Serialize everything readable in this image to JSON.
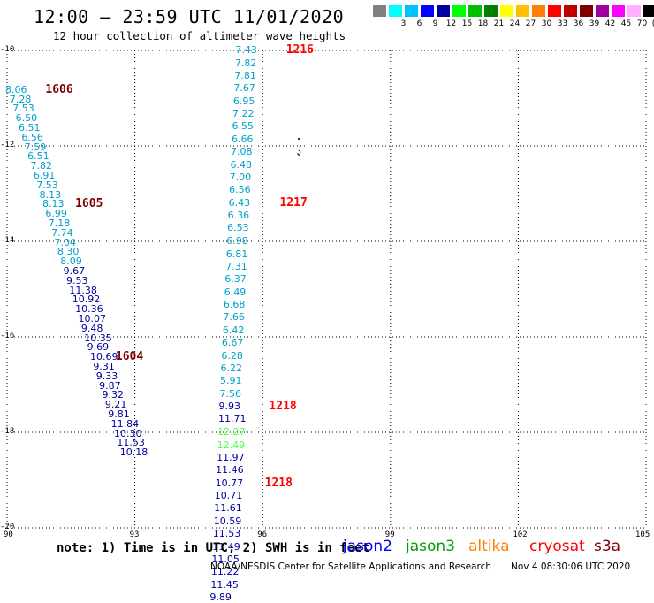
{
  "header": {
    "title": "12:00 – 23:59 UTC 11/01/2020",
    "subtitle": "12 hour collection of altimeter wave heights"
  },
  "legend": {
    "swatches": [
      {
        "color": "#808080",
        "label": ""
      },
      {
        "color": "#00ffff",
        "label": "3"
      },
      {
        "color": "#00c0ff",
        "label": "6"
      },
      {
        "color": "#0000ff",
        "label": "9"
      },
      {
        "color": "#0000a0",
        "label": "12"
      },
      {
        "color": "#00ff00",
        "label": "15"
      },
      {
        "color": "#00c000",
        "label": "18"
      },
      {
        "color": "#008000",
        "label": "21"
      },
      {
        "color": "#ffff00",
        "label": "24"
      },
      {
        "color": "#ffc000",
        "label": "27"
      },
      {
        "color": "#ff8000",
        "label": "30"
      },
      {
        "color": "#ff0000",
        "label": "33"
      },
      {
        "color": "#c00000",
        "label": "36"
      },
      {
        "color": "#800000",
        "label": "39"
      },
      {
        "color": "#a000a0",
        "label": "42"
      },
      {
        "color": "#ff00ff",
        "label": "45"
      },
      {
        "color": "#ffb0ff",
        "label": "70"
      },
      {
        "color": "#000000",
        "label": "(ft)"
      }
    ]
  },
  "axes": {
    "x_ticks": [
      "90",
      "93",
      "96",
      "99",
      "102",
      "105"
    ],
    "y_ticks": [
      "-10",
      "-12",
      "-14",
      "-16",
      "-18",
      "-20"
    ]
  },
  "tracks": [
    {
      "color_cyan": "#00a0c8",
      "color_blue": "#0000a0",
      "points": [
        {
          "lon": 90.25,
          "lat": -10.83,
          "v": "8.06",
          "c": "cyan"
        },
        {
          "lon": 90.35,
          "lat": -11.03,
          "v": "7.28",
          "c": "cyan"
        },
        {
          "lon": 90.42,
          "lat": -11.23,
          "v": "7.53",
          "c": "cyan"
        },
        {
          "lon": 90.49,
          "lat": -11.43,
          "v": "6.50",
          "c": "cyan"
        },
        {
          "lon": 90.56,
          "lat": -11.63,
          "v": "6.51",
          "c": "cyan"
        },
        {
          "lon": 90.63,
          "lat": -11.83,
          "v": "6.56",
          "c": "cyan"
        },
        {
          "lon": 90.7,
          "lat": -12.03,
          "v": "7.59",
          "c": "cyan"
        },
        {
          "lon": 90.77,
          "lat": -12.23,
          "v": "6.51",
          "c": "cyan"
        },
        {
          "lon": 90.84,
          "lat": -12.43,
          "v": "7.82",
          "c": "cyan"
        },
        {
          "lon": 90.91,
          "lat": -12.63,
          "v": "6.91",
          "c": "cyan"
        },
        {
          "lon": 90.98,
          "lat": -12.83,
          "v": "7.53",
          "c": "cyan"
        },
        {
          "lon": 91.05,
          "lat": -13.03,
          "v": "8.13",
          "c": "cyan"
        },
        {
          "lon": 91.12,
          "lat": -13.23,
          "v": "8.13",
          "c": "cyan"
        },
        {
          "lon": 91.19,
          "lat": -13.43,
          "v": "6.99",
          "c": "cyan"
        },
        {
          "lon": 91.26,
          "lat": -13.63,
          "v": "7.18",
          "c": "cyan"
        },
        {
          "lon": 91.33,
          "lat": -13.83,
          "v": "7.74",
          "c": "cyan"
        },
        {
          "lon": 91.4,
          "lat": -14.03,
          "v": "7.04",
          "c": "cyan"
        },
        {
          "lon": 91.47,
          "lat": -14.23,
          "v": "8.30",
          "c": "cyan"
        },
        {
          "lon": 91.54,
          "lat": -14.43,
          "v": "8.09",
          "c": "cyan"
        },
        {
          "lon": 91.61,
          "lat": -14.63,
          "v": "9.67",
          "c": "blue"
        },
        {
          "lon": 91.68,
          "lat": -14.83,
          "v": "9.53",
          "c": "blue"
        },
        {
          "lon": 91.75,
          "lat": -15.03,
          "v": "11.38",
          "c": "blue"
        },
        {
          "lon": 91.82,
          "lat": -15.23,
          "v": "10.92",
          "c": "blue"
        },
        {
          "lon": 91.89,
          "lat": -15.43,
          "v": "10.36",
          "c": "blue"
        },
        {
          "lon": 91.96,
          "lat": -15.63,
          "v": "10.07",
          "c": "blue"
        },
        {
          "lon": 92.03,
          "lat": -15.83,
          "v": "9.48",
          "c": "blue"
        },
        {
          "lon": 92.1,
          "lat": -16.03,
          "v": "10.35",
          "c": "blue"
        },
        {
          "lon": 92.17,
          "lat": -16.23,
          "v": "9.69",
          "c": "blue"
        },
        {
          "lon": 92.24,
          "lat": -16.43,
          "v": "10.69",
          "c": "blue"
        },
        {
          "lon": 92.31,
          "lat": -16.63,
          "v": "9.31",
          "c": "blue"
        },
        {
          "lon": 92.38,
          "lat": -16.83,
          "v": "9.33",
          "c": "blue"
        },
        {
          "lon": 92.45,
          "lat": -17.03,
          "v": "9.87",
          "c": "blue"
        },
        {
          "lon": 92.52,
          "lat": -17.23,
          "v": "9.32",
          "c": "blue"
        },
        {
          "lon": 92.59,
          "lat": -17.43,
          "v": "9.21",
          "c": "blue"
        },
        {
          "lon": 92.66,
          "lat": -17.63,
          "v": "9.81",
          "c": "blue"
        },
        {
          "lon": 92.73,
          "lat": -17.83,
          "v": "11.84",
          "c": "blue"
        },
        {
          "lon": 92.8,
          "lat": -18.03,
          "v": "10.30",
          "c": "blue"
        },
        {
          "lon": 92.87,
          "lat": -18.23,
          "v": "11.53",
          "c": "blue"
        },
        {
          "lon": 92.94,
          "lat": -18.43,
          "v": "10.18",
          "c": "blue"
        }
      ],
      "passes": [
        {
          "lon": 90.9,
          "lat": -10.83,
          "label": "1606"
        },
        {
          "lon": 91.6,
          "lat": -13.23,
          "label": "1605"
        },
        {
          "lon": 92.55,
          "lat": -16.43,
          "label": "1604"
        }
      ],
      "pass_color": "#800000"
    },
    {
      "color_cyan": "#00a0c8",
      "color_blue": "#0000a0",
      "color_green": "#50ff50",
      "points": [
        {
          "lon": 95.65,
          "lat": -10.0,
          "v": "7.43",
          "c": "cyan"
        },
        {
          "lon": 95.64,
          "lat": -10.27,
          "v": "7.82",
          "c": "cyan"
        },
        {
          "lon": 95.63,
          "lat": -10.53,
          "v": "7.81",
          "c": "cyan"
        },
        {
          "lon": 95.61,
          "lat": -10.8,
          "v": "7.67",
          "c": "cyan"
        },
        {
          "lon": 95.6,
          "lat": -11.07,
          "v": "6.95",
          "c": "cyan"
        },
        {
          "lon": 95.58,
          "lat": -11.33,
          "v": "7.22",
          "c": "cyan"
        },
        {
          "lon": 95.57,
          "lat": -11.6,
          "v": "6.55",
          "c": "cyan"
        },
        {
          "lon": 95.56,
          "lat": -11.87,
          "v": "6.66",
          "c": "cyan"
        },
        {
          "lon": 95.54,
          "lat": -12.13,
          "v": "7.08",
          "c": "cyan"
        },
        {
          "lon": 95.53,
          "lat": -12.4,
          "v": "6.48",
          "c": "cyan"
        },
        {
          "lon": 95.51,
          "lat": -12.67,
          "v": "7.00",
          "c": "cyan"
        },
        {
          "lon": 95.5,
          "lat": -12.93,
          "v": "6.56",
          "c": "cyan"
        },
        {
          "lon": 95.49,
          "lat": -13.2,
          "v": "6.43",
          "c": "cyan"
        },
        {
          "lon": 95.47,
          "lat": -13.47,
          "v": "6.36",
          "c": "cyan"
        },
        {
          "lon": 95.46,
          "lat": -13.73,
          "v": "6.53",
          "c": "cyan"
        },
        {
          "lon": 95.44,
          "lat": -14.0,
          "v": "6.98",
          "c": "cyan"
        },
        {
          "lon": 95.43,
          "lat": -14.27,
          "v": "6.81",
          "c": "cyan"
        },
        {
          "lon": 95.42,
          "lat": -14.53,
          "v": "7.31",
          "c": "cyan"
        },
        {
          "lon": 95.4,
          "lat": -14.8,
          "v": "6.37",
          "c": "cyan"
        },
        {
          "lon": 95.39,
          "lat": -15.07,
          "v": "6.49",
          "c": "cyan"
        },
        {
          "lon": 95.37,
          "lat": -15.33,
          "v": "6.68",
          "c": "cyan"
        },
        {
          "lon": 95.36,
          "lat": -15.6,
          "v": "7.66",
          "c": "cyan"
        },
        {
          "lon": 95.35,
          "lat": -15.87,
          "v": "6.42",
          "c": "cyan"
        },
        {
          "lon": 95.33,
          "lat": -16.13,
          "v": "6.67",
          "c": "cyan"
        },
        {
          "lon": 95.32,
          "lat": -16.4,
          "v": "6.28",
          "c": "cyan"
        },
        {
          "lon": 95.3,
          "lat": -16.67,
          "v": "6.22",
          "c": "cyan"
        },
        {
          "lon": 95.29,
          "lat": -16.93,
          "v": "5.91",
          "c": "cyan"
        },
        {
          "lon": 95.28,
          "lat": -17.2,
          "v": "7.56",
          "c": "cyan"
        },
        {
          "lon": 95.26,
          "lat": -17.47,
          "v": "9.93",
          "c": "blue"
        },
        {
          "lon": 95.25,
          "lat": -17.73,
          "v": "11.71",
          "c": "blue"
        },
        {
          "lon": 95.23,
          "lat": -18.0,
          "v": "12.27",
          "c": "green"
        },
        {
          "lon": 95.22,
          "lat": -18.27,
          "v": "12.49",
          "c": "green"
        },
        {
          "lon": 95.21,
          "lat": -18.53,
          "v": "11.97",
          "c": "blue"
        },
        {
          "lon": 95.19,
          "lat": -18.8,
          "v": "11.46",
          "c": "blue"
        },
        {
          "lon": 95.18,
          "lat": -19.07,
          "v": "10.77",
          "c": "blue"
        },
        {
          "lon": 95.16,
          "lat": -19.33,
          "v": "10.71",
          "c": "blue"
        },
        {
          "lon": 95.15,
          "lat": -19.6,
          "v": "11.61",
          "c": "blue"
        },
        {
          "lon": 95.14,
          "lat": -19.87,
          "v": "10.59",
          "c": "blue"
        },
        {
          "lon": 95.12,
          "lat": -20.13,
          "v": "11.53",
          "c": "blue"
        },
        {
          "lon": 95.11,
          "lat": -20.4,
          "v": "11.49",
          "c": "blue"
        },
        {
          "lon": 95.09,
          "lat": -20.67,
          "v": "11.05",
          "c": "blue"
        },
        {
          "lon": 95.08,
          "lat": -20.93,
          "v": "11.22",
          "c": "blue"
        },
        {
          "lon": 95.07,
          "lat": -21.2,
          "v": "11.45",
          "c": "blue"
        },
        {
          "lon": 95.05,
          "lat": -21.47,
          "v": "9.89",
          "c": "blue"
        }
      ],
      "passes": [
        {
          "lon": 96.55,
          "lat": -10.0,
          "label": "1216"
        },
        {
          "lon": 96.4,
          "lat": -13.2,
          "label": "1217"
        },
        {
          "lon": 96.15,
          "lat": -17.47,
          "label": "1218"
        },
        {
          "lon": 96.05,
          "lat": -19.07,
          "label": "1218"
        }
      ],
      "pass_color": "#ff0000"
    }
  ],
  "note": "note: 1) Time is in UTC; 2) SWH is in feet",
  "satellites": [
    {
      "name": "jason2",
      "color": "#0000ff"
    },
    {
      "name": "jason3",
      "color": "#00a000"
    },
    {
      "name": "altika",
      "color": "#ff8000"
    },
    {
      "name": "cryosat",
      "color": "#ff0000"
    },
    {
      "name": "s3a",
      "color": "#800000"
    }
  ],
  "footer": {
    "credit": "NOAA/NESDIS Center for Satellite Applications and Research",
    "stamp": "Nov  4 08:30:06 UTC 2020"
  }
}
